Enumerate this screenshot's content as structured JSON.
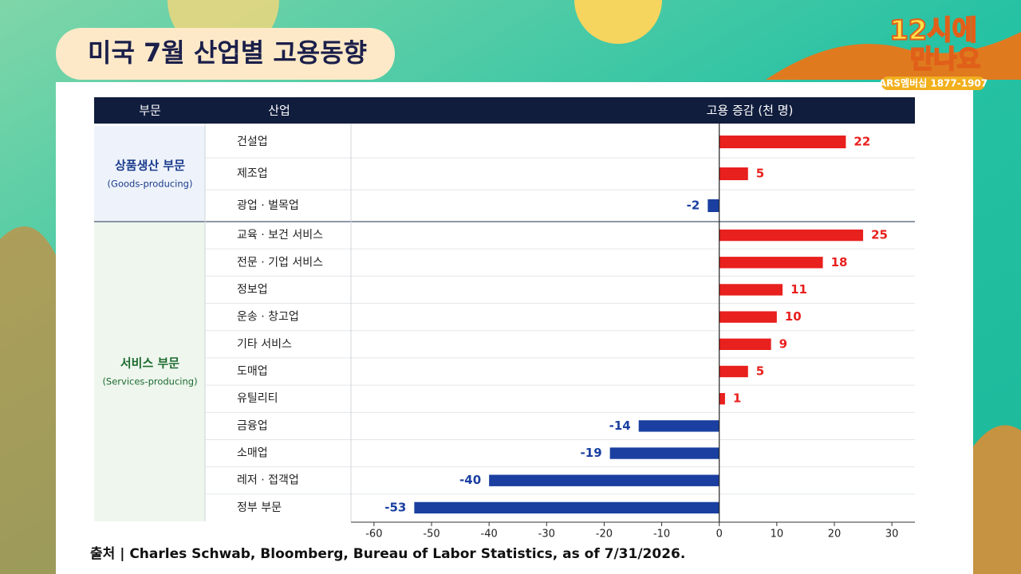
{
  "header": {
    "title": "미국 7월 산업별 고용동향",
    "logo": [
      "12시에",
      "만나요"
    ],
    "logo_sub": "ARS멤버십 1877-1907"
  },
  "chart_data": {
    "type": "bar",
    "orientation": "horizontal",
    "columns": [
      "부문",
      "산업",
      "고용 증감 (천 명)"
    ],
    "groups": [
      {
        "name": "상품생산 부문",
        "subtitle": "(Goods-producing)",
        "color": "#1a3b8c",
        "categories": [
          "건설업",
          "제조업",
          "광업 · 벌목업"
        ],
        "values": [
          22,
          5,
          -2
        ]
      },
      {
        "name": "서비스 부문",
        "subtitle": "(Services-producing)",
        "color": "#1e6b30",
        "categories": [
          "교육 · 보건 서비스",
          "전문 · 기업 서비스",
          "정보업",
          "운송 · 창고업",
          "기타 서비스",
          "도매업",
          "유틸리티",
          "금융업",
          "소매업",
          "레저 · 접객업",
          "정부 부문"
        ],
        "values": [
          25,
          18,
          11,
          10,
          9,
          5,
          1,
          -14,
          -19,
          -40,
          -53
        ]
      }
    ],
    "positive_color": "#e8201e",
    "negative_color": "#1a3fa0",
    "xlim": [
      -64,
      34
    ],
    "xticks": [
      -60,
      -50,
      -40,
      -30,
      -20,
      -10,
      0,
      10,
      20,
      30
    ],
    "grid": false,
    "source": "출처 | Charles Schwab, Bloomberg, Bureau of Labor Statistics, as of 7/31/2026."
  }
}
